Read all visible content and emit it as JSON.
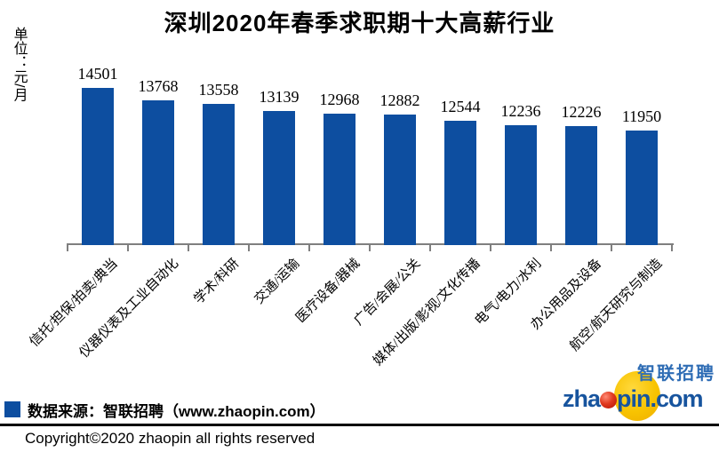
{
  "chart_data": {
    "type": "bar",
    "title": "深圳2020年春季求职期十大高薪行业",
    "unit_label": "单位：元/月",
    "categories": [
      "信托/担保/拍卖/典当",
      "仪器仪表及工业自动化",
      "学术/科研",
      "交通/运输",
      "医疗设备/器械",
      "广告/会展/公关",
      "媒体/出版/影视/文化传播",
      "电气/电力/水利",
      "办公用品及设备",
      "航空/航天研究与制造"
    ],
    "values": [
      14501,
      13768,
      13558,
      13139,
      12968,
      12882,
      12544,
      12236,
      12226,
      11950
    ],
    "ylim": [
      5000,
      15000
    ],
    "grid": false,
    "legend_position": "none",
    "bar_color": "#0d4ea0",
    "axis_color": "#7f7f7f"
  },
  "footer": {
    "legend_label": "数据来源：智联招聘（www.zhaopin.com）",
    "copyright": "Copyright©2020 zhaopin all rights reserved"
  },
  "logo": {
    "brand_cn": "智联招聘",
    "url_prefix": "zha",
    "url_suffix": "pin.com",
    "colors": {
      "blue": "#17549e",
      "yellow": "#f8c301",
      "red": "#b31000"
    }
  }
}
